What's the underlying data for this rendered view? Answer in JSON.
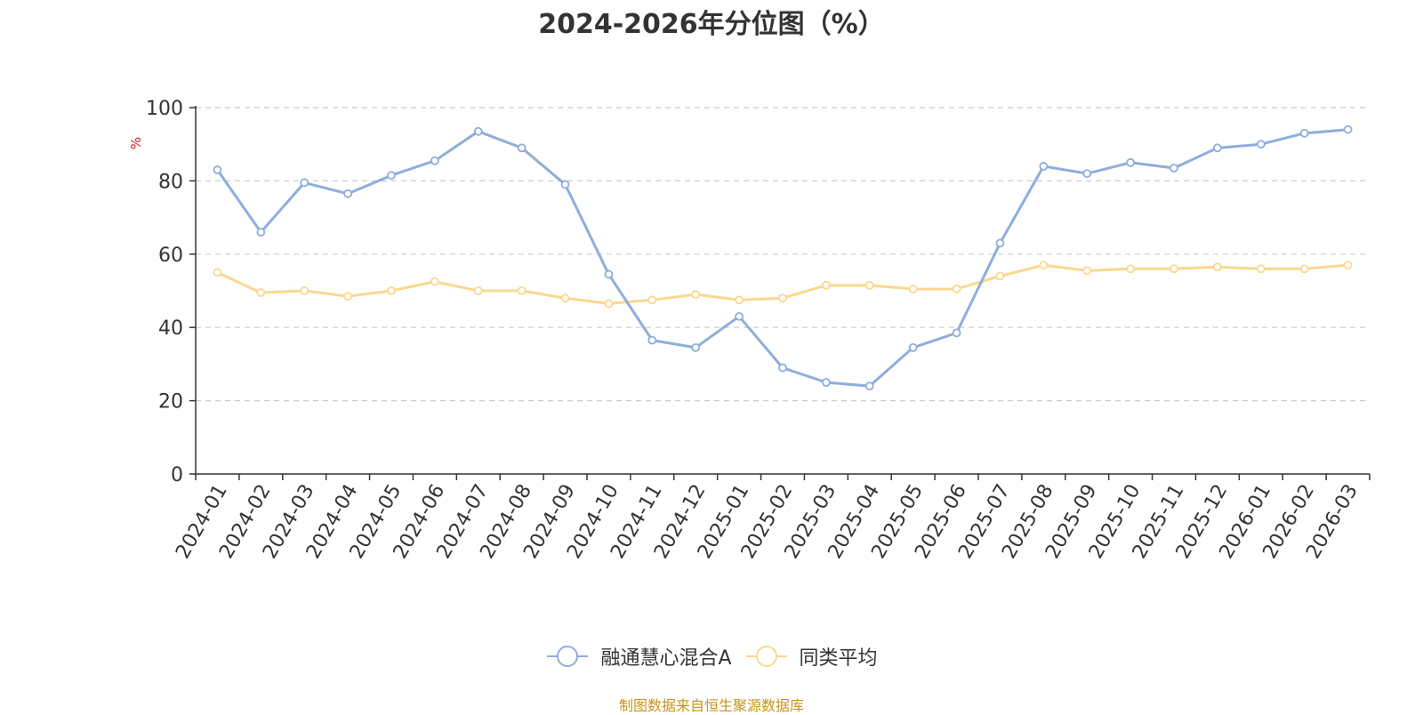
{
  "chart_data": {
    "type": "line",
    "title": "2024-2026年分位图（%）",
    "ylabel": "%",
    "xlabel": "",
    "ylim": [
      0,
      100
    ],
    "yticks": [
      0,
      20,
      40,
      60,
      80,
      100
    ],
    "grid": true,
    "legend_position": "bottom-center",
    "categories": [
      "2024-01",
      "2024-02",
      "2024-03",
      "2024-04",
      "2024-05",
      "2024-06",
      "2024-07",
      "2024-08",
      "2024-09",
      "2024-10",
      "2024-11",
      "2024-12",
      "2025-01",
      "2025-02",
      "2025-03",
      "2025-04",
      "2025-05",
      "2025-06",
      "2025-07",
      "2025-08",
      "2025-09",
      "2025-10",
      "2025-11",
      "2025-12",
      "2026-01",
      "2026-02",
      "2026-03"
    ],
    "series": [
      {
        "name": "融通慧心混合A",
        "color": "#8eaedb",
        "values": [
          83,
          66,
          79.5,
          76.5,
          81.5,
          85.5,
          93.5,
          89,
          79,
          54.5,
          36.5,
          34.5,
          43,
          29,
          25,
          24,
          34.5,
          38.5,
          63,
          84,
          82,
          85,
          83.5,
          89,
          90,
          93,
          94
        ]
      },
      {
        "name": "同类平均",
        "color": "#fbd88e",
        "values": [
          55,
          49.5,
          50,
          48.5,
          50,
          52.5,
          50,
          50,
          48,
          46.5,
          47.5,
          49,
          47.5,
          48,
          51.5,
          51.5,
          50.5,
          50.5,
          54,
          57,
          55.5,
          56,
          56,
          56.5,
          56,
          56,
          57
        ]
      }
    ],
    "source": "制图数据来自恒生聚源数据库"
  }
}
